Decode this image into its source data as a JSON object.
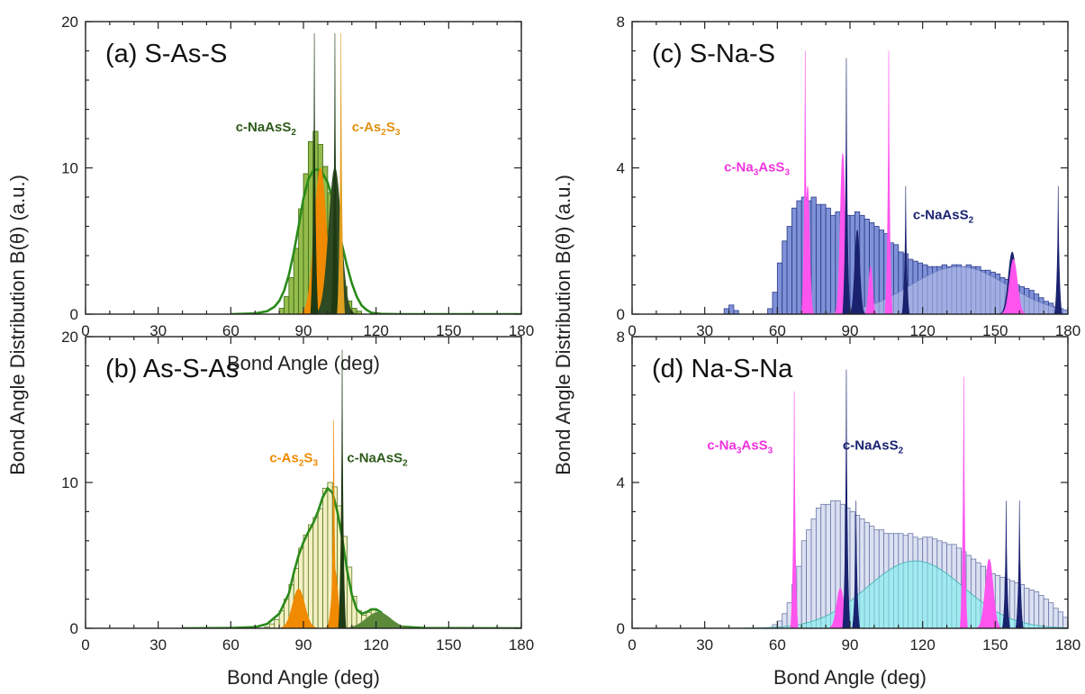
{
  "chart_data": [
    {
      "id": "a",
      "type": "area",
      "title": "(a) S-As-S",
      "xlabel": "Bond Angle (deg)",
      "ylabel": "Bond Angle Distribution B(θ) (a.u.)",
      "xlim": [
        0,
        180
      ],
      "ylim": [
        0,
        20
      ],
      "xticks": [
        0,
        30,
        60,
        90,
        120,
        150,
        180
      ],
      "yticks": [
        0,
        10,
        20
      ],
      "grid": false,
      "histogram": {
        "color": "#8ab43a",
        "stroke": "#3a6a10",
        "bin_width": 2,
        "centers": [
          81,
          83,
          85,
          87,
          89,
          91,
          93,
          95,
          97,
          99,
          101,
          103,
          105,
          107,
          109,
          111,
          113
        ],
        "heights": [
          0.4,
          1.2,
          2.5,
          4.5,
          7.2,
          9.6,
          11.8,
          12.5,
          11.6,
          10.1,
          8.3,
          5.9,
          3.6,
          1.9,
          0.9,
          0.4,
          0.2
        ]
      },
      "fit_curve": {
        "color": "#2a8a1a",
        "x": [
          60,
          70,
          75,
          78,
          80,
          82,
          84,
          86,
          88,
          90,
          92,
          94,
          96,
          98,
          100,
          102,
          104,
          106,
          108,
          110,
          112,
          114,
          116,
          118,
          122,
          130,
          180
        ],
        "y": [
          0,
          0.05,
          0.2,
          0.5,
          0.9,
          1.6,
          2.7,
          4.2,
          6.0,
          7.9,
          9.2,
          9.8,
          9.9,
          9.6,
          9.0,
          7.9,
          6.3,
          4.7,
          3.3,
          2.1,
          1.2,
          0.6,
          0.3,
          0.1,
          0.02,
          0,
          0
        ]
      },
      "filled_peaks": [
        {
          "color": "#f08a00",
          "center": 97,
          "height": 10.0,
          "width": 2.5,
          "base_width": 6
        },
        {
          "color": "#2e4a22",
          "center": 103,
          "height": 10.0,
          "width": 2.5,
          "base_width": 6
        }
      ],
      "spikes": [
        {
          "color": "#1e3a14",
          "x": 94.5,
          "height": 19.2
        },
        {
          "color": "#1e3a14",
          "x": 103.0,
          "height": 19.2
        },
        {
          "color": "#e0a020",
          "x": 105.5,
          "height": 19.2
        }
      ],
      "annotations": [
        {
          "text": "c-NaAsS",
          "sub": "2",
          "color": "#2e5a1a",
          "x": 62,
          "y": 12.5
        },
        {
          "text": "c-As",
          "sub": "2",
          "text2": "S",
          "sub2": "3",
          "color": "#e09010",
          "x": 110,
          "y": 12.5
        }
      ]
    },
    {
      "id": "b",
      "type": "area",
      "title": "(b) As-S-As",
      "xlabel": "Bond Angle (deg)",
      "ylabel": "",
      "xlim": [
        0,
        180
      ],
      "ylim": [
        0,
        20
      ],
      "xticks": [
        0,
        30,
        60,
        90,
        120,
        150,
        180
      ],
      "yticks": [
        0,
        10,
        20
      ],
      "grid": false,
      "histogram": {
        "color": "#f2eebc",
        "stroke": "#5a7a20",
        "bin_width": 2,
        "centers": [
          75,
          77,
          79,
          81,
          83,
          85,
          87,
          89,
          91,
          93,
          95,
          97,
          99,
          101,
          103,
          105,
          107,
          109,
          111,
          113,
          115,
          117,
          119,
          121,
          123,
          125,
          127
        ],
        "heights": [
          0.1,
          0.3,
          0.6,
          1.2,
          2.0,
          3.0,
          4.1,
          5.5,
          6.4,
          7.1,
          7.6,
          8.2,
          9.6,
          10.0,
          9.7,
          8.4,
          6.3,
          4.2,
          2.2,
          1.2,
          0.9,
          1.1,
          1.3,
          1.0,
          0.6,
          0.3,
          0.1
        ]
      },
      "fit_curve": {
        "color": "#2a8a1a",
        "x": [
          40,
          60,
          70,
          75,
          80,
          84,
          86,
          88,
          90,
          92,
          94,
          96,
          98,
          100,
          102,
          104,
          106,
          108,
          110,
          112,
          114,
          116,
          118,
          120,
          122,
          124,
          126,
          130,
          140,
          180
        ],
        "y": [
          0,
          0.02,
          0.08,
          0.3,
          1.0,
          2.4,
          3.8,
          5.0,
          5.9,
          6.6,
          7.2,
          8.0,
          9.0,
          9.6,
          9.3,
          8.0,
          6.2,
          4.0,
          2.3,
          1.3,
          1.0,
          1.1,
          1.3,
          1.3,
          1.1,
          0.7,
          0.4,
          0.12,
          0.02,
          0
        ]
      },
      "filled_peaks": [
        {
          "color": "#f08a00",
          "center": 88,
          "height": 2.7,
          "width": 2.5,
          "base_width": 6
        },
        {
          "color": "#f08a00",
          "center": 103,
          "height": 4.0,
          "width": 1.2,
          "base_width": 3
        },
        {
          "color": "#5a8a3a",
          "center": 121,
          "height": 1.1,
          "width": 5,
          "base_width": 11
        }
      ],
      "spikes": [
        {
          "color": "#f08a00",
          "x": 102.5,
          "height": 14.3
        },
        {
          "color": "#1e3a14",
          "x": 106.0,
          "height": 19.1
        }
      ],
      "annotations": [
        {
          "text": "c-As",
          "sub": "2",
          "text2": "S",
          "sub2": "3",
          "color": "#f08a00",
          "x": 76,
          "y": 11.4
        },
        {
          "text": "c-NaAsS",
          "sub": "2",
          "color": "#2e5a1a",
          "x": 108,
          "y": 11.4
        }
      ]
    },
    {
      "id": "c",
      "type": "area",
      "title": "(c) S-Na-S",
      "xlabel": "",
      "ylabel": "Bond Angle Distribution B(θ) (a.u.)",
      "xlim": [
        0,
        180
      ],
      "ylim": [
        0,
        8
      ],
      "xticks": [
        0,
        30,
        60,
        90,
        120,
        150,
        180
      ],
      "yticks": [
        0,
        4,
        8
      ],
      "grid": false,
      "histogram": {
        "color": "#6a7fd0",
        "stroke": "#2a3a8a",
        "bin_width": 2,
        "centers": [
          39,
          41,
          43,
          57,
          59,
          61,
          63,
          65,
          67,
          69,
          71,
          73,
          75,
          77,
          79,
          81,
          83,
          85,
          87,
          89,
          91,
          93,
          95,
          97,
          99,
          101,
          103,
          105,
          107,
          109,
          111,
          113,
          115,
          117,
          119,
          121,
          123,
          125,
          127,
          129,
          131,
          133,
          135,
          137,
          139,
          141,
          143,
          145,
          147,
          149,
          151,
          153,
          155,
          157,
          159,
          161,
          163,
          165,
          167,
          169,
          171,
          173,
          175,
          177,
          179
        ],
        "heights": [
          0.15,
          0.25,
          0.1,
          0.15,
          0.6,
          1.4,
          2.0,
          2.4,
          2.9,
          3.1,
          3.2,
          3.1,
          3.2,
          3.0,
          3.0,
          2.9,
          2.7,
          2.8,
          2.8,
          2.7,
          2.7,
          2.8,
          2.7,
          2.6,
          2.5,
          2.4,
          2.3,
          2.2,
          1.95,
          1.9,
          1.7,
          1.65,
          1.5,
          1.45,
          1.4,
          1.35,
          1.3,
          1.3,
          1.3,
          1.35,
          1.3,
          1.35,
          1.35,
          1.3,
          1.35,
          1.3,
          1.3,
          1.2,
          1.2,
          1.15,
          1.1,
          1.0,
          0.95,
          0.9,
          0.8,
          0.75,
          0.7,
          0.65,
          0.55,
          0.45,
          0.35,
          0.3,
          0.2,
          0.15,
          0.1
        ]
      },
      "fit_curve": null,
      "broad_fill": {
        "color": "#c4ccf0",
        "stroke": "#7080c0",
        "center": 135,
        "height": 1.3,
        "width": 20,
        "base_width": 45
      },
      "filled_peaks": [
        {
          "color": "#ff55ee",
          "center": 72.5,
          "height": 3.5,
          "width": 0.8,
          "base_width": 2.5
        },
        {
          "color": "#ff55ee",
          "center": 87,
          "height": 4.4,
          "width": 1.0,
          "base_width": 3
        },
        {
          "color": "#ff55ee",
          "center": 98.5,
          "height": 1.3,
          "width": 0.8,
          "base_width": 2
        },
        {
          "color": "#1a2270",
          "center": 93,
          "height": 2.3,
          "width": 1.0,
          "base_width": 3
        },
        {
          "color": "#1a2270",
          "center": 157,
          "height": 1.7,
          "width": 1.6,
          "base_width": 4
        },
        {
          "color": "#ff55ee",
          "center": 157.5,
          "height": 1.5,
          "width": 1.6,
          "base_width": 4
        }
      ],
      "spikes": [
        {
          "color": "#ff55ee",
          "x": 71.5,
          "height": 7.2
        },
        {
          "color": "#1a2270",
          "x": 88.5,
          "height": 7.0
        },
        {
          "color": "#ff55ee",
          "x": 106,
          "height": 7.2
        },
        {
          "color": "#1a2270",
          "x": 113,
          "height": 3.5
        },
        {
          "color": "#1a2270",
          "x": 176,
          "height": 3.5
        }
      ],
      "annotations": [
        {
          "text": "c-Na",
          "sub": "3",
          "text2": "AsS",
          "sub2": "3",
          "color": "#ee33dd",
          "x": 38,
          "y": 3.9
        },
        {
          "text": "c-NaAsS",
          "sub": "2",
          "color": "#1a2270",
          "x": 116,
          "y": 2.6
        }
      ]
    },
    {
      "id": "d",
      "type": "area",
      "title": "(d) Na-S-Na",
      "xlabel": "Bond Angle (deg)",
      "ylabel": "Bond Angle Distribution B(θ) (a.u.)",
      "xlim": [
        0,
        180
      ],
      "ylim": [
        0,
        8
      ],
      "xticks": [
        0,
        30,
        60,
        90,
        120,
        150,
        180
      ],
      "yticks": [
        0,
        4,
        8
      ],
      "grid": false,
      "histogram": {
        "color": "#d6dcf0",
        "stroke": "#6a78a8",
        "bin_width": 2,
        "centers": [
          59,
          61,
          63,
          65,
          67,
          69,
          71,
          73,
          75,
          77,
          79,
          81,
          83,
          85,
          87,
          89,
          91,
          93,
          95,
          97,
          99,
          101,
          103,
          105,
          107,
          109,
          111,
          113,
          115,
          117,
          119,
          121,
          123,
          125,
          127,
          129,
          131,
          133,
          135,
          137,
          139,
          141,
          143,
          145,
          147,
          149,
          151,
          153,
          155,
          157,
          159,
          161,
          163,
          165,
          167,
          169,
          171,
          173,
          175,
          177,
          179
        ],
        "heights": [
          0.1,
          0.2,
          0.4,
          0.7,
          1.2,
          1.7,
          2.4,
          2.7,
          3.0,
          3.3,
          3.4,
          3.4,
          3.5,
          3.5,
          3.4,
          3.3,
          3.2,
          3.1,
          3.0,
          2.9,
          2.8,
          2.7,
          2.7,
          2.6,
          2.6,
          2.6,
          2.6,
          2.55,
          2.6,
          2.5,
          2.45,
          2.5,
          2.5,
          2.45,
          2.4,
          2.35,
          2.3,
          2.3,
          2.2,
          2.1,
          2.0,
          1.9,
          1.8,
          1.7,
          1.6,
          1.5,
          1.45,
          1.4,
          1.35,
          1.3,
          1.25,
          1.2,
          1.1,
          1.05,
          1.0,
          0.9,
          0.8,
          0.7,
          0.55,
          0.45,
          0.3
        ]
      },
      "fit_curve": null,
      "broad_fill": {
        "color": "#7ff2ee",
        "stroke": "#40b0b0",
        "center": 117,
        "height": 1.85,
        "width": 20,
        "base_width": 45
      },
      "filled_peaks": [
        {
          "color": "#ff55ee",
          "center": 86,
          "height": 1.1,
          "width": 1.5,
          "base_width": 4
        },
        {
          "color": "#ff55ee",
          "center": 147.5,
          "height": 1.9,
          "width": 1.6,
          "base_width": 4
        }
      ],
      "spikes": [
        {
          "color": "#ff55ee",
          "x": 67,
          "height": 6.5
        },
        {
          "color": "#1a2270",
          "x": 88.5,
          "height": 7.1
        },
        {
          "color": "#1a2270",
          "x": 92.5,
          "height": 3.5
        },
        {
          "color": "#ff55ee",
          "x": 137,
          "height": 6.9
        },
        {
          "color": "#1a2270",
          "x": 154.5,
          "height": 3.5
        },
        {
          "color": "#1a2270",
          "x": 160,
          "height": 3.5
        }
      ],
      "annotations": [
        {
          "text": "c-Na",
          "sub": "3",
          "text2": "AsS",
          "sub2": "3",
          "color": "#ee33dd",
          "x": 31,
          "y": 4.9
        },
        {
          "text": "c-NaAsS",
          "sub": "2",
          "color": "#1a2270",
          "x": 87,
          "y": 4.9
        }
      ]
    }
  ]
}
